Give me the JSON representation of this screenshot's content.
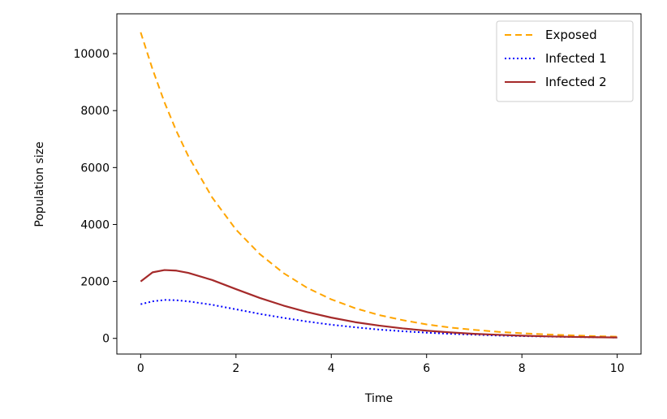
{
  "chart_data": {
    "type": "line",
    "title": "",
    "xlabel": "Time",
    "ylabel": "Population size",
    "xlim": [
      -0.5,
      10.5
    ],
    "ylim": [
      -550,
      11400
    ],
    "xticks": [
      0,
      2,
      4,
      6,
      8,
      10
    ],
    "xtick_labels": [
      "0",
      "2",
      "4",
      "6",
      "8",
      "10"
    ],
    "yticks": [
      0,
      2000,
      4000,
      6000,
      8000,
      10000
    ],
    "ytick_labels": [
      "0",
      "2000",
      "4000",
      "6000",
      "8000",
      "10000"
    ],
    "grid": false,
    "legend_position": "upper right",
    "x": [
      0,
      0.25,
      0.5,
      0.75,
      1,
      1.5,
      2,
      2.5,
      3,
      3.5,
      4,
      4.5,
      5,
      5.5,
      6,
      6.5,
      7,
      7.5,
      8,
      8.5,
      9,
      9.5,
      10
    ],
    "series": [
      {
        "name": "Exposed",
        "color": "#FFA500",
        "style": "dashed",
        "values": [
          10750,
          9450,
          8290,
          7280,
          6400,
          4950,
          3820,
          2960,
          2290,
          1770,
          1370,
          1060,
          820,
          640,
          490,
          380,
          300,
          230,
          180,
          140,
          110,
          80,
          60
        ]
      },
      {
        "name": "Infected 1",
        "color": "#0000FF",
        "style": "dotted",
        "values": [
          1200,
          1300,
          1350,
          1340,
          1300,
          1180,
          1020,
          860,
          720,
          590,
          480,
          390,
          310,
          250,
          200,
          160,
          130,
          100,
          80,
          65,
          50,
          40,
          30
        ]
      },
      {
        "name": "Infected 2",
        "color": "#A52A2A",
        "style": "solid",
        "values": [
          2000,
          2320,
          2400,
          2380,
          2300,
          2050,
          1730,
          1420,
          1150,
          920,
          730,
          570,
          450,
          350,
          270,
          210,
          160,
          125,
          95,
          72,
          55,
          42,
          32
        ]
      }
    ]
  }
}
